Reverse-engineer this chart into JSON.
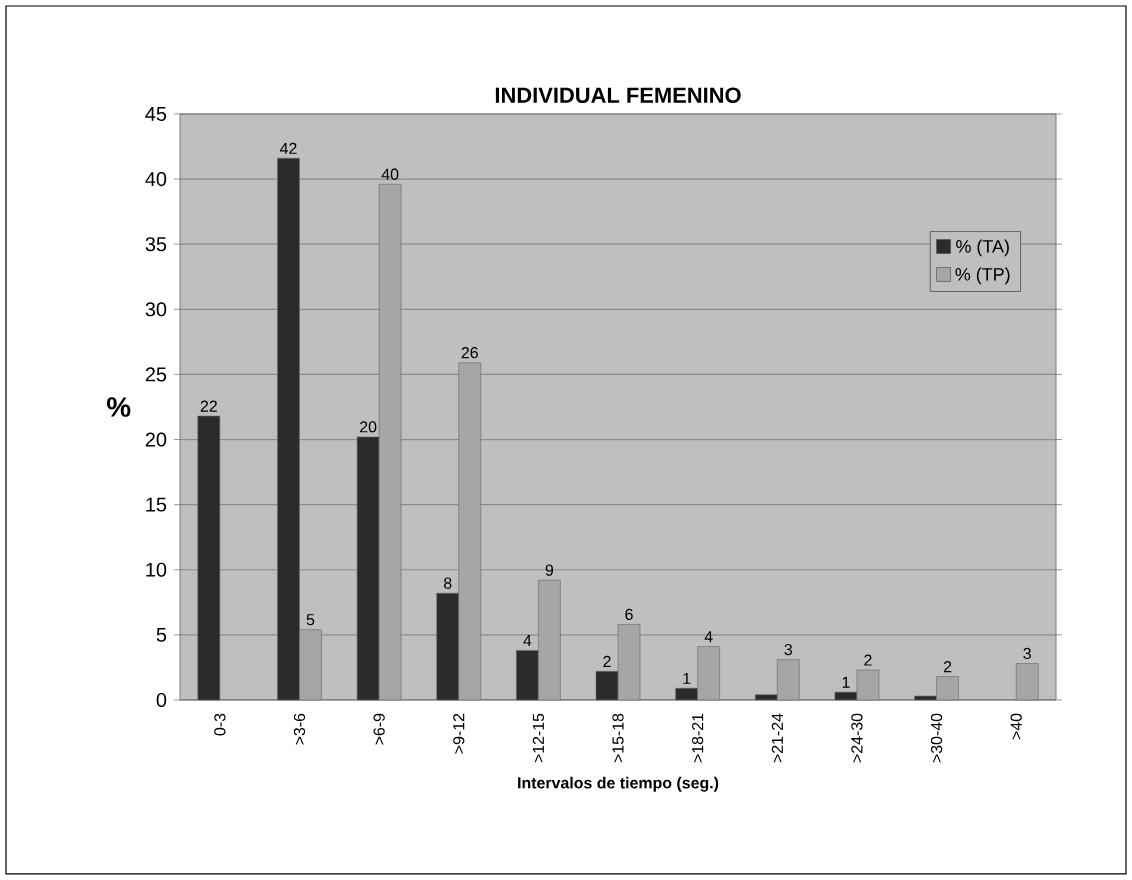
{
  "chart_data": {
    "type": "bar",
    "title": "INDIVIDUAL FEMENINO",
    "xlabel": "Intervalos de tiempo (seg.)",
    "ylabel": "%",
    "categories": [
      "0-3",
      ">3-6",
      ">6-9",
      ">9-12",
      ">12-15",
      ">15-18",
      ">18-21",
      ">21-24",
      ">24-30",
      ">30-40",
      ">40"
    ],
    "series": [
      {
        "name": "% (TA)",
        "color": "#2b2b2b",
        "values": [
          21.8,
          41.6,
          20.2,
          8.2,
          3.8,
          2.2,
          0.9,
          0.4,
          0.6,
          0.3,
          null
        ],
        "value_labels": [
          "22",
          "42",
          "20",
          "8",
          "4",
          "2",
          "1",
          null,
          "1",
          null,
          null
        ]
      },
      {
        "name": "% (TP)",
        "color": "#a6a6a6",
        "values": [
          null,
          5.4,
          39.6,
          25.9,
          9.2,
          5.8,
          4.1,
          3.1,
          2.3,
          1.8,
          2.8
        ],
        "value_labels": [
          null,
          "5",
          "40",
          "26",
          "9",
          "6",
          "4",
          "3",
          "2",
          "2",
          "3"
        ]
      }
    ],
    "ylim": [
      0,
      45
    ],
    "yticks": [
      0,
      5,
      10,
      15,
      20,
      25,
      30,
      35,
      40,
      45
    ],
    "grid": "y",
    "legend": "top right"
  }
}
